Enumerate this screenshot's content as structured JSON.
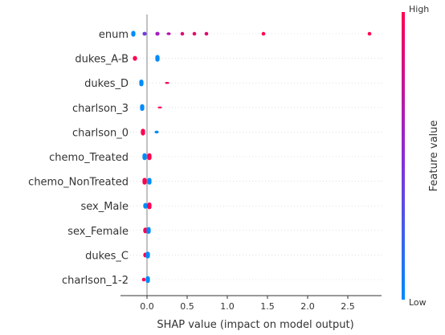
{
  "chart_data": {
    "type": "scatter",
    "subtype": "shap-beeswarm",
    "xlabel": "SHAP value (impact on model output)",
    "xticks": [
      0.0,
      0.5,
      1.0,
      1.5,
      2.0,
      2.5
    ],
    "xtick_labels": [
      "0.0",
      "0.5",
      "1.0",
      "1.5",
      "2.0",
      "2.5"
    ],
    "xlim": [
      -0.33,
      2.92
    ],
    "colorbar": {
      "title": "Feature value",
      "high_label": "High",
      "low_label": "Low",
      "high_color": "#ff0052",
      "low_color": "#008bfb",
      "mid_color": "#8b2bd6"
    },
    "grid": false,
    "features": [
      {
        "name": "enum",
        "points": [
          {
            "x": -0.17,
            "lo": -0.06,
            "hi": 0.06,
            "color": "#008bfb"
          },
          {
            "x": -0.03,
            "lo": -0.04,
            "hi": 0.04,
            "color": "#6e3ed8"
          },
          {
            "x": 0.13,
            "lo": -0.04,
            "hi": 0.04,
            "color": "#a21ec0"
          },
          {
            "x": 0.27,
            "lo": -0.03,
            "hi": 0.03,
            "color": "#b613a8"
          },
          {
            "x": 0.44,
            "lo": 0,
            "hi": 0,
            "color": "#d90b7e"
          },
          {
            "x": 0.59,
            "lo": 0,
            "hi": 0,
            "color": "#e8066a"
          },
          {
            "x": 0.74,
            "lo": 0,
            "hi": 0,
            "color": "#e0086f"
          },
          {
            "x": 1.45,
            "lo": 0,
            "hi": 0,
            "color": "#ff0052"
          },
          {
            "x": 2.77,
            "lo": 0,
            "hi": 0,
            "color": "#ff0052"
          }
        ]
      },
      {
        "name": "dukes_A-B",
        "points": [
          {
            "x": -0.15,
            "lo": -0.05,
            "hi": 0.05,
            "color": "#ff0052"
          },
          {
            "x": 0.13,
            "lo": -0.07,
            "hi": 0.07,
            "color": "#008bfb"
          }
        ]
      },
      {
        "name": "dukes_D",
        "points": [
          {
            "x": -0.07,
            "lo": -0.07,
            "hi": 0.07,
            "color": "#008bfb"
          },
          {
            "x": 0.25,
            "lo": -0.02,
            "hi": 0.02,
            "color": "#ff0052"
          }
        ]
      },
      {
        "name": "charlson_3",
        "points": [
          {
            "x": -0.06,
            "lo": -0.07,
            "hi": 0.07,
            "color": "#008bfb"
          },
          {
            "x": 0.16,
            "lo": -0.02,
            "hi": 0.02,
            "color": "#ff0052"
          }
        ]
      },
      {
        "name": "charlson_0",
        "points": [
          {
            "x": -0.05,
            "lo": -0.07,
            "hi": 0.07,
            "color": "#ff0052"
          },
          {
            "x": 0.12,
            "lo": -0.03,
            "hi": 0.03,
            "color": "#008bfb"
          }
        ]
      },
      {
        "name": "chemo_Treated",
        "points": [
          {
            "x": -0.03,
            "lo": -0.07,
            "hi": 0.07,
            "color": "#008bfb"
          },
          {
            "x": 0.03,
            "lo": -0.07,
            "hi": 0.07,
            "color": "#ff0052"
          }
        ]
      },
      {
        "name": "chemo_NonTreated",
        "points": [
          {
            "x": -0.03,
            "lo": -0.07,
            "hi": 0.07,
            "color": "#ff0052"
          },
          {
            "x": 0.03,
            "lo": -0.07,
            "hi": 0.07,
            "color": "#008bfb"
          }
        ]
      },
      {
        "name": "sex_Male",
        "points": [
          {
            "x": -0.02,
            "lo": -0.06,
            "hi": 0.06,
            "color": "#008bfb"
          },
          {
            "x": 0.03,
            "lo": -0.07,
            "hi": 0.07,
            "color": "#ff0052"
          }
        ]
      },
      {
        "name": "sex_Female",
        "points": [
          {
            "x": -0.02,
            "lo": -0.06,
            "hi": 0.06,
            "color": "#ff0052"
          },
          {
            "x": 0.02,
            "lo": -0.07,
            "hi": 0.07,
            "color": "#008bfb"
          }
        ]
      },
      {
        "name": "dukes_C",
        "points": [
          {
            "x": -0.02,
            "lo": -0.05,
            "hi": 0.05,
            "color": "#ff0052"
          },
          {
            "x": 0.01,
            "lo": -0.07,
            "hi": 0.07,
            "color": "#008bfb"
          }
        ]
      },
      {
        "name": "charlson_1-2",
        "points": [
          {
            "x": -0.04,
            "lo": 0,
            "hi": 0,
            "color": "#ff0052"
          },
          {
            "x": 0.01,
            "lo": -0.07,
            "hi": 0.07,
            "color": "#008bfb"
          }
        ]
      }
    ]
  }
}
